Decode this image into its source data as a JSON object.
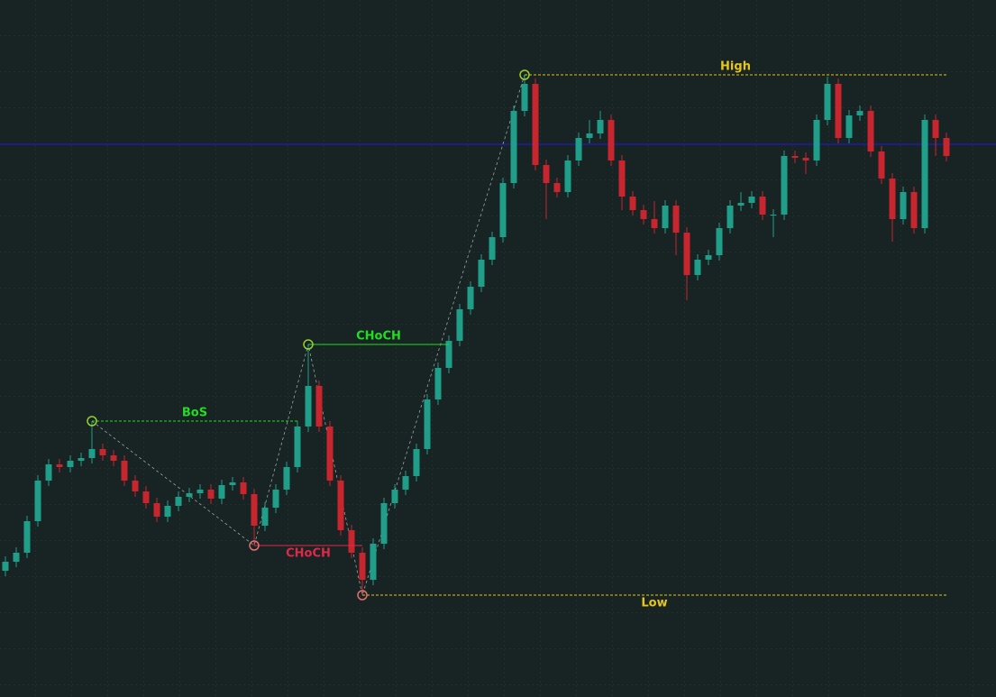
{
  "chart_data": {
    "type": "candlestick",
    "ylim": [
      0,
      773
    ],
    "up_color": "#1f9e89",
    "down_color": "#c8262f",
    "open": [
      140,
      150,
      160,
      195,
      240,
      258,
      255,
      262,
      265,
      275,
      268,
      262,
      240,
      228,
      215,
      200,
      212,
      222,
      226,
      230,
      220,
      235,
      238,
      225,
      190,
      210,
      230,
      255,
      300,
      345,
      300,
      240,
      185,
      160,
      130,
      170,
      215,
      230,
      245,
      275,
      330,
      365,
      395,
      430,
      455,
      485,
      510,
      570,
      650,
      680,
      590,
      570,
      560,
      595,
      620,
      625,
      640,
      595,
      555,
      540,
      530,
      520,
      545,
      515,
      468,
      485,
      490,
      520,
      545,
      548,
      555,
      535,
      535,
      600,
      598,
      595,
      640,
      680,
      620,
      645,
      650,
      605,
      575,
      530,
      560,
      520,
      640,
      620
    ],
    "high": [
      156,
      166,
      201,
      246,
      264,
      264,
      268,
      271,
      306,
      281,
      274,
      268,
      246,
      234,
      221,
      218,
      228,
      232,
      236,
      236,
      241,
      244,
      244,
      231,
      216,
      236,
      261,
      306,
      391,
      351,
      306,
      246,
      191,
      166,
      176,
      221,
      236,
      251,
      281,
      336,
      371,
      401,
      436,
      461,
      491,
      516,
      576,
      656,
      690,
      686,
      596,
      576,
      601,
      626,
      640,
      650,
      646,
      601,
      561,
      546,
      550,
      551,
      551,
      521,
      491,
      496,
      526,
      551,
      560,
      561,
      561,
      541,
      606,
      606,
      604,
      646,
      688,
      686,
      651,
      656,
      656,
      611,
      581,
      566,
      566,
      646,
      646,
      626
    ],
    "low": [
      134,
      144,
      154,
      189,
      234,
      249,
      249,
      256,
      259,
      262,
      256,
      234,
      222,
      209,
      194,
      194,
      206,
      216,
      220,
      214,
      214,
      229,
      219,
      168,
      184,
      204,
      224,
      249,
      294,
      294,
      234,
      179,
      154,
      113,
      124,
      164,
      209,
      224,
      239,
      269,
      324,
      359,
      389,
      424,
      449,
      479,
      504,
      564,
      644,
      584,
      530,
      554,
      554,
      589,
      614,
      619,
      589,
      540,
      534,
      524,
      514,
      514,
      490,
      440,
      462,
      479,
      484,
      514,
      539,
      542,
      529,
      510,
      529,
      592,
      580,
      589,
      634,
      614,
      614,
      639,
      599,
      569,
      505,
      524,
      514,
      514,
      600,
      594
    ],
    "close": [
      150,
      160,
      195,
      240,
      258,
      255,
      262,
      265,
      275,
      268,
      262,
      240,
      228,
      215,
      200,
      212,
      222,
      226,
      230,
      220,
      235,
      238,
      225,
      190,
      210,
      230,
      255,
      300,
      345,
      300,
      240,
      185,
      160,
      130,
      170,
      215,
      230,
      245,
      275,
      330,
      365,
      395,
      430,
      455,
      485,
      510,
      570,
      650,
      680,
      590,
      570,
      560,
      595,
      620,
      625,
      640,
      595,
      555,
      540,
      530,
      520,
      545,
      515,
      468,
      485,
      490,
      520,
      545,
      548,
      555,
      535,
      535,
      600,
      598,
      595,
      640,
      680,
      620,
      645,
      650,
      605,
      575,
      530,
      560,
      520,
      640,
      620,
      600
    ],
    "hline": {
      "value": 613,
      "color": "#1c1ca8"
    },
    "swings": [
      {
        "index": 8,
        "value": 306,
        "color": "#9acd32"
      },
      {
        "index": 23,
        "value": 168,
        "color": "#e07070"
      },
      {
        "index": 28,
        "value": 391,
        "color": "#9acd32"
      },
      {
        "index": 33,
        "value": 113,
        "color": "#e07070"
      },
      {
        "index": 48,
        "value": 690,
        "color": "#9acd32"
      }
    ],
    "levels": [
      {
        "label": "BoS",
        "value": 306,
        "start": 8,
        "end": 27,
        "color": "#22dd22",
        "dashed": true,
        "below": false
      },
      {
        "label": "CHoCH",
        "value": 391,
        "start": 28,
        "end": 41,
        "color": "#22dd22",
        "dashed": false,
        "below": false
      },
      {
        "label": "CHoCH",
        "value": 168,
        "start": 23,
        "end": 33,
        "color": "#e0284a",
        "dashed": false,
        "below": true
      },
      {
        "label": "High",
        "value": 690,
        "start": 48,
        "end": 87,
        "color": "#e6c619",
        "dashed": true,
        "below": false
      },
      {
        "label": "Low",
        "value": 113,
        "start": 33,
        "end": 87,
        "color": "#e6c619",
        "dashed": true,
        "below": true
      }
    ]
  }
}
